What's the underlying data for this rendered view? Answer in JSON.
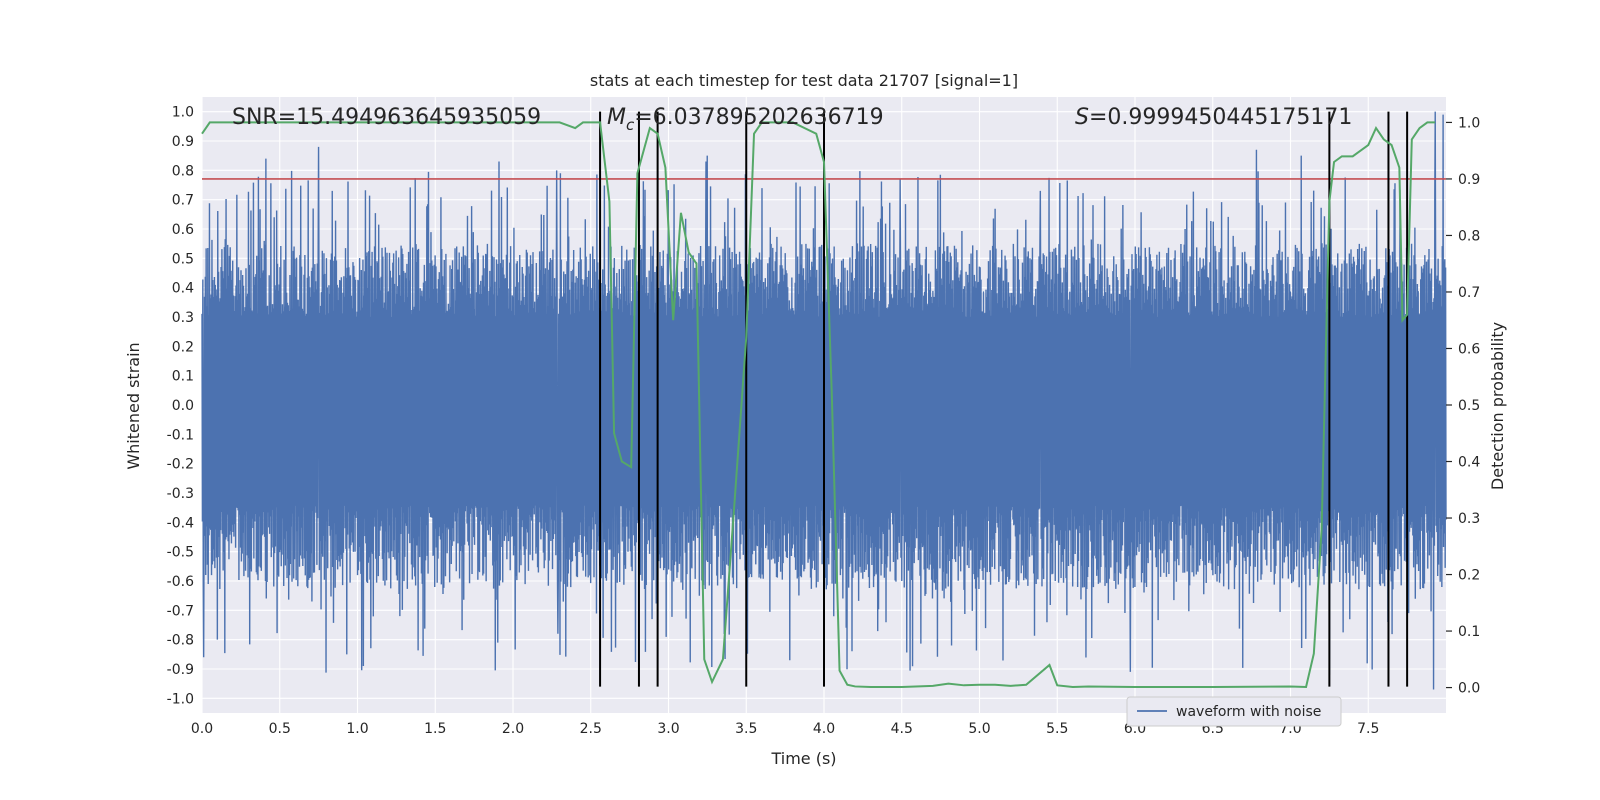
{
  "chart_data": {
    "type": "line",
    "title": "stats at each timestep for test data 21707 [signal=1]",
    "xlabel": "Time (s)",
    "ylabel_left": "Whitened strain",
    "ylabel_right": "Detection probability",
    "xlim": [
      0.0,
      8.0
    ],
    "ylim_left": [
      -1.05,
      1.05
    ],
    "ylim_right": [
      -0.045,
      1.045
    ],
    "x_ticks": [
      "0.0",
      "0.5",
      "1.0",
      "1.5",
      "2.0",
      "2.5",
      "3.0",
      "3.5",
      "4.0",
      "4.5",
      "5.0",
      "5.5",
      "6.0",
      "6.5",
      "7.0",
      "7.5"
    ],
    "y_left_ticks": [
      "1.0",
      "0.9",
      "0.8",
      "0.7",
      "0.6",
      "0.5",
      "0.4",
      "0.3",
      "0.2",
      "0.1",
      "0.0",
      "-0.1",
      "-0.2",
      "-0.3",
      "-0.4",
      "-0.5",
      "-0.6",
      "-0.7",
      "-0.8",
      "-0.9",
      "-1.0"
    ],
    "y_right_ticks": [
      "1.0",
      "0.9",
      "0.8",
      "0.7",
      "0.6",
      "0.5",
      "0.4",
      "0.3",
      "0.2",
      "0.1",
      "0.0"
    ],
    "annotations": {
      "snr": "SNR=15.494963645935059",
      "mc": "6.037895202636719",
      "mc_label": "M",
      "mc_sub": "c",
      "s": "=0.9999450445175171",
      "s_label": "S"
    },
    "legend": {
      "label": "waveform with noise",
      "position": "lower-right"
    },
    "threshold": {
      "value": 0.9,
      "axis": "right",
      "color": "#c44e52"
    },
    "vlines": [
      2.56,
      2.81,
      2.93,
      3.5,
      4.0,
      7.25,
      7.63,
      7.75
    ],
    "vline_ymin": -0.96,
    "vline_ymax": 1.0,
    "series": [
      {
        "name": "waveform with noise",
        "axis": "left",
        "color": "#4c72b0",
        "seed": 21707,
        "duration": 8.0,
        "samples": 3000,
        "envelope_pos": 0.42,
        "envelope_neg": -0.48,
        "spikes": [
          {
            "t": 0.41,
            "v": 0.84
          },
          {
            "t": 0.75,
            "v": 0.88
          },
          {
            "t": 1.91,
            "v": 0.83
          },
          {
            "t": 3.25,
            "v": 0.85
          },
          {
            "t": 3.24,
            "v": 0.83
          },
          {
            "t": 6.78,
            "v": 0.87
          },
          {
            "t": 7.07,
            "v": 0.85
          },
          {
            "t": 7.93,
            "v": 1.0
          },
          {
            "t": 7.98,
            "v": 0.99
          },
          {
            "t": 0.01,
            "v": -0.86
          },
          {
            "t": 0.1,
            "v": -0.8
          },
          {
            "t": 0.93,
            "v": -0.85
          },
          {
            "t": 2.29,
            "v": -0.78
          },
          {
            "t": 3.78,
            "v": -0.87
          },
          {
            "t": 4.82,
            "v": -0.82
          },
          {
            "t": 5.97,
            "v": -0.91
          },
          {
            "t": 7.92,
            "v": -0.97
          },
          {
            "t": 7.25,
            "v": -0.92
          },
          {
            "t": 4.49,
            "v": 0.77
          },
          {
            "t": 5.39,
            "v": 0.73
          },
          {
            "t": 2.28,
            "v": 0.8
          }
        ]
      },
      {
        "name": "detection probability",
        "axis": "right",
        "color": "#55a868",
        "x": [
          0.0,
          0.05,
          0.1,
          0.5,
          1.0,
          1.5,
          2.0,
          2.3,
          2.4,
          2.45,
          2.5,
          2.56,
          2.62,
          2.65,
          2.7,
          2.76,
          2.8,
          2.88,
          2.93,
          2.98,
          3.03,
          3.08,
          3.13,
          3.18,
          3.23,
          3.28,
          3.35,
          3.42,
          3.5,
          3.55,
          3.6,
          3.8,
          3.95,
          4.0,
          4.05,
          4.1,
          4.15,
          4.2,
          4.3,
          4.5,
          4.7,
          4.8,
          4.9,
          5.0,
          5.1,
          5.2,
          5.3,
          5.45,
          5.5,
          5.6,
          5.7,
          6.0,
          6.5,
          7.0,
          7.1,
          7.15,
          7.2,
          7.25,
          7.28,
          7.33,
          7.4,
          7.45,
          7.5,
          7.55,
          7.6,
          7.65,
          7.7,
          7.72,
          7.75,
          7.78,
          7.83,
          7.88,
          7.93
        ],
        "y": [
          0.98,
          1.0,
          1.0,
          1.0,
          1.0,
          1.0,
          1.0,
          1.0,
          0.99,
          1.0,
          1.0,
          1.0,
          0.86,
          0.45,
          0.4,
          0.39,
          0.91,
          0.99,
          0.98,
          0.92,
          0.65,
          0.84,
          0.77,
          0.75,
          0.05,
          0.01,
          0.05,
          0.31,
          0.62,
          0.98,
          1.0,
          1.0,
          0.98,
          0.93,
          0.52,
          0.03,
          0.005,
          0.002,
          0.001,
          0.001,
          0.003,
          0.007,
          0.004,
          0.005,
          0.005,
          0.003,
          0.005,
          0.04,
          0.004,
          0.001,
          0.002,
          0.001,
          0.001,
          0.002,
          0.001,
          0.06,
          0.28,
          0.86,
          0.93,
          0.94,
          0.94,
          0.95,
          0.96,
          0.99,
          0.97,
          0.96,
          0.92,
          0.65,
          0.66,
          0.97,
          0.99,
          1.0,
          1.0
        ]
      }
    ]
  }
}
